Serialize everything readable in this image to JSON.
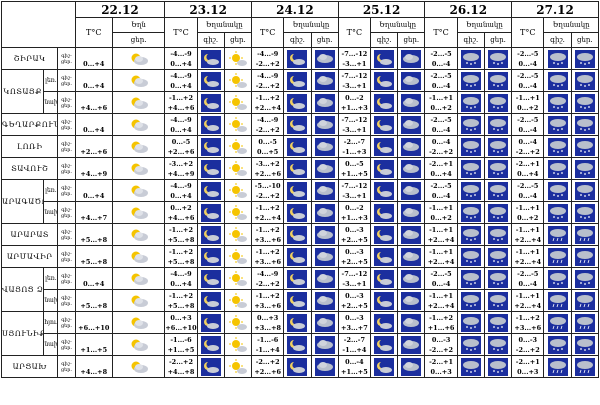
{
  "corner": "",
  "dates": [
    "22.12",
    "23.12",
    "24.12",
    "25.12",
    "26.12",
    "27.12"
  ],
  "temp_label": "T°C",
  "phen_label": "Եղանակը",
  "time_labels": [
    "գիշ.",
    "ցեր."
  ],
  "first_day_labels": [
    "Եղն",
    "ցեր."
  ],
  "row_labels": [
    "գիշ-",
    "ցեր."
  ],
  "regions": [
    {
      "name": "ՇԻՐԱԿ",
      "sub": "",
      "days": [
        {
          "t": [
            "",
            "0...+4"
          ],
          "ic": [
            "",
            "cloud-sun"
          ]
        },
        {
          "t": [
            "-4...-9",
            "0...+4"
          ],
          "ic": [
            "moon-cloud",
            "sun"
          ]
        },
        {
          "t": [
            "-4...-9",
            "-2...+2"
          ],
          "ic": [
            "moon-cloud",
            "cloud"
          ]
        },
        {
          "t": [
            "-7...-12",
            "-3...+1"
          ],
          "ic": [
            "moon-cloud",
            "cloud"
          ]
        },
        {
          "t": [
            "-2...-5",
            "0...-4"
          ],
          "ic": [
            "snow-cloud",
            "snow-cloud"
          ]
        },
        {
          "t": [
            "-2...-5",
            "0...-4"
          ],
          "ic": [
            "snow-cloud",
            "snow-cloud"
          ]
        }
      ]
    },
    {
      "name": "ԿՈՏԱՅՔ",
      "sub": "լեռ.",
      "days": [
        {
          "t": [
            "",
            "0...+4"
          ],
          "ic": [
            "",
            "cloud-sun"
          ]
        },
        {
          "t": [
            "-4...-9",
            "0...+4"
          ],
          "ic": [
            "moon-cloud",
            "sun"
          ]
        },
        {
          "t": [
            "-4...-9",
            "-2...+2"
          ],
          "ic": [
            "moon-cloud",
            "cloud"
          ]
        },
        {
          "t": [
            "-7...-12",
            "-3...+1"
          ],
          "ic": [
            "moon-cloud",
            "cloud"
          ]
        },
        {
          "t": [
            "-2...-5",
            "0...-4"
          ],
          "ic": [
            "snow-cloud",
            "snow-cloud"
          ]
        },
        {
          "t": [
            "-2...-5",
            "0...-4"
          ],
          "ic": [
            "snow-cloud",
            "snow-cloud"
          ]
        }
      ]
    },
    {
      "name": "",
      "sub": "նախ.",
      "days": [
        {
          "t": [
            "",
            "+4...+6"
          ],
          "ic": [
            "",
            "cloud-sun"
          ]
        },
        {
          "t": [
            "-1...+2",
            "+4...+6"
          ],
          "ic": [
            "moon-cloud",
            "sun"
          ]
        },
        {
          "t": [
            "-1...+2",
            "+2...+4"
          ],
          "ic": [
            "moon-cloud",
            "cloud"
          ]
        },
        {
          "t": [
            "0...-2",
            "+1...+3"
          ],
          "ic": [
            "moon-cloud",
            "cloud"
          ]
        },
        {
          "t": [
            "-1...+1",
            "0...+2"
          ],
          "ic": [
            "snow-cloud",
            "snow-cloud"
          ]
        },
        {
          "t": [
            "-1...+1",
            "0...+2"
          ],
          "ic": [
            "snow-cloud",
            "snow-cloud"
          ]
        }
      ]
    },
    {
      "name": "ԳԵՂԱՐՔՈՒՆԻՔ",
      "sub": "",
      "days": [
        {
          "t": [
            "",
            "0...+4"
          ],
          "ic": [
            "",
            "cloud-sun"
          ]
        },
        {
          "t": [
            "-4...-9",
            "0...+4"
          ],
          "ic": [
            "moon-cloud",
            "sun"
          ]
        },
        {
          "t": [
            "-4...-9",
            "-2...+2"
          ],
          "ic": [
            "moon-cloud",
            "cloud"
          ]
        },
        {
          "t": [
            "-7...-12",
            "-3...+1"
          ],
          "ic": [
            "moon-cloud",
            "cloud"
          ]
        },
        {
          "t": [
            "-2...-5",
            "0...-4"
          ],
          "ic": [
            "snow-cloud",
            "snow-cloud"
          ]
        },
        {
          "t": [
            "-2...-5",
            "0...-4"
          ],
          "ic": [
            "snow-cloud",
            "snow-cloud"
          ]
        }
      ]
    },
    {
      "name": "ԼՈՌԻ",
      "sub": "",
      "days": [
        {
          "t": [
            "",
            "+2...+6"
          ],
          "ic": [
            "",
            "cloud-sun"
          ]
        },
        {
          "t": [
            "0...-5",
            "+2...+6"
          ],
          "ic": [
            "moon-cloud",
            "sun"
          ]
        },
        {
          "t": [
            "0...-5",
            "0...+5"
          ],
          "ic": [
            "moon-cloud",
            "cloud"
          ]
        },
        {
          "t": [
            "-2...-7",
            "-1...+3"
          ],
          "ic": [
            "moon-cloud",
            "cloud"
          ]
        },
        {
          "t": [
            "0...-4",
            "-2...+2"
          ],
          "ic": [
            "snow-cloud",
            "snow-cloud"
          ]
        },
        {
          "t": [
            "0...-4",
            "-2...+2"
          ],
          "ic": [
            "snow-cloud",
            "snow-cloud"
          ]
        }
      ]
    },
    {
      "name": "ՏԱՎՈՒՇ",
      "sub": "",
      "days": [
        {
          "t": [
            "",
            "+4...+9"
          ],
          "ic": [
            "",
            "cloud-sun"
          ]
        },
        {
          "t": [
            "-3...+2",
            "+4...+9"
          ],
          "ic": [
            "moon-cloud",
            "sun"
          ]
        },
        {
          "t": [
            "-3...+2",
            "+2...+6"
          ],
          "ic": [
            "moon-cloud",
            "cloud"
          ]
        },
        {
          "t": [
            "0...-5",
            "+1...+5"
          ],
          "ic": [
            "moon-cloud",
            "cloud"
          ]
        },
        {
          "t": [
            "-2...+1",
            "0...+4"
          ],
          "ic": [
            "snow-cloud",
            "snow-cloud"
          ]
        },
        {
          "t": [
            "-2...+1",
            "0...+4"
          ],
          "ic": [
            "snow-cloud",
            "snow-cloud"
          ]
        }
      ]
    },
    {
      "name": "ԱՐԱԳԱԾՈՏՆ",
      "sub": "լեռ.",
      "days": [
        {
          "t": [
            "",
            "0...+4"
          ],
          "ic": [
            "",
            "cloud-sun"
          ]
        },
        {
          "t": [
            "-4...-9",
            "0...+4"
          ],
          "ic": [
            "moon-cloud",
            "sun"
          ]
        },
        {
          "t": [
            "-5...-10",
            "-2...+2"
          ],
          "ic": [
            "moon-cloud",
            "cloud"
          ]
        },
        {
          "t": [
            "-7...-12",
            "-3...+1"
          ],
          "ic": [
            "moon-cloud",
            "cloud"
          ]
        },
        {
          "t": [
            "-2...-5",
            "0...-4"
          ],
          "ic": [
            "snow-cloud",
            "snow-cloud"
          ]
        },
        {
          "t": [
            "-2...-5",
            "0...-4"
          ],
          "ic": [
            "snow-cloud",
            "snow-cloud"
          ]
        }
      ]
    },
    {
      "name": "",
      "sub": "նախ.",
      "days": [
        {
          "t": [
            "",
            "+4...+7"
          ],
          "ic": [
            "",
            "cloud-sun"
          ]
        },
        {
          "t": [
            "0...+2",
            "+4...+6"
          ],
          "ic": [
            "moon-cloud",
            "sun"
          ]
        },
        {
          "t": [
            "-1...+2",
            "+2...+4"
          ],
          "ic": [
            "moon-cloud",
            "cloud"
          ]
        },
        {
          "t": [
            "0...-2",
            "+1...+3"
          ],
          "ic": [
            "moon-cloud",
            "cloud"
          ]
        },
        {
          "t": [
            "-1...+1",
            "0...+2"
          ],
          "ic": [
            "snow-cloud",
            "snow-cloud"
          ]
        },
        {
          "t": [
            "-1...+1",
            "0...+2"
          ],
          "ic": [
            "snow-cloud",
            "snow-cloud"
          ]
        }
      ]
    },
    {
      "name": "ԱՐԱՐԱՏ",
      "sub": "",
      "days": [
        {
          "t": [
            "",
            "+5...+8"
          ],
          "ic": [
            "",
            "cloud-sun"
          ]
        },
        {
          "t": [
            "-1...+2",
            "+5...+8"
          ],
          "ic": [
            "moon-cloud",
            "sun"
          ]
        },
        {
          "t": [
            "-1...+2",
            "+3...+6"
          ],
          "ic": [
            "moon-cloud",
            "cloud"
          ]
        },
        {
          "t": [
            "0...-3",
            "+2...+5"
          ],
          "ic": [
            "moon-cloud",
            "cloud"
          ]
        },
        {
          "t": [
            "-1...+1",
            "+2...+4"
          ],
          "ic": [
            "snow-cloud",
            "snow-cloud"
          ]
        },
        {
          "t": [
            "-1...+1",
            "+2...+4"
          ],
          "ic": [
            "rain-cloud",
            "rain-cloud"
          ]
        }
      ]
    },
    {
      "name": "ԱՐՄԱՎԻՐ",
      "sub": "",
      "days": [
        {
          "t": [
            "",
            "+5...+8"
          ],
          "ic": [
            "",
            "cloud-sun"
          ]
        },
        {
          "t": [
            "-1...+2",
            "+5...+8"
          ],
          "ic": [
            "moon-cloud",
            "sun"
          ]
        },
        {
          "t": [
            "-1...+2",
            "+3...+6"
          ],
          "ic": [
            "moon-cloud",
            "cloud"
          ]
        },
        {
          "t": [
            "0...-3",
            "+2...+5"
          ],
          "ic": [
            "moon-cloud",
            "cloud"
          ]
        },
        {
          "t": [
            "-1...+1",
            "+2...+4"
          ],
          "ic": [
            "snow-cloud",
            "snow-cloud"
          ]
        },
        {
          "t": [
            "-1...+1",
            "+2...+4"
          ],
          "ic": [
            "rain-cloud",
            "rain-cloud"
          ]
        }
      ]
    },
    {
      "name": "ՎԱՅՈՑ ՁՈՐ",
      "sub": "լեռ.",
      "days": [
        {
          "t": [
            "",
            "0...+4"
          ],
          "ic": [
            "",
            "cloud-sun"
          ]
        },
        {
          "t": [
            "-4...-9",
            "0...+4"
          ],
          "ic": [
            "moon-cloud",
            "sun"
          ]
        },
        {
          "t": [
            "-4...-9",
            "-2...+2"
          ],
          "ic": [
            "moon-cloud",
            "cloud"
          ]
        },
        {
          "t": [
            "-7...-12",
            "-3...+1"
          ],
          "ic": [
            "moon-cloud",
            "cloud"
          ]
        },
        {
          "t": [
            "-2...-5",
            "0...-4"
          ],
          "ic": [
            "snow-cloud",
            "snow-cloud"
          ]
        },
        {
          "t": [
            "-2...-5",
            "0...-4"
          ],
          "ic": [
            "snow-cloud",
            "snow-cloud"
          ]
        }
      ]
    },
    {
      "name": "",
      "sub": "նախ.",
      "days": [
        {
          "t": [
            "",
            "+5...+8"
          ],
          "ic": [
            "",
            "cloud-sun"
          ]
        },
        {
          "t": [
            "-1...+2",
            "+5...+8"
          ],
          "ic": [
            "moon-cloud",
            "sun"
          ]
        },
        {
          "t": [
            "-1...+2",
            "+3...+6"
          ],
          "ic": [
            "moon-cloud",
            "cloud"
          ]
        },
        {
          "t": [
            "0...-3",
            "+2...+5"
          ],
          "ic": [
            "moon-cloud",
            "cloud"
          ]
        },
        {
          "t": [
            "-1...+1",
            "+2...+4"
          ],
          "ic": [
            "snow-cloud",
            "snow-cloud"
          ]
        },
        {
          "t": [
            "-1...+1",
            "+2...+4"
          ],
          "ic": [
            "rain-cloud",
            "rain-cloud"
          ]
        }
      ]
    },
    {
      "name": "ՍՅՈՒՆԻՔ",
      "sub": "հյու.",
      "days": [
        {
          "t": [
            "",
            "+6...+10"
          ],
          "ic": [
            "",
            "cloud-sun"
          ]
        },
        {
          "t": [
            "0...+3",
            "+6...+10"
          ],
          "ic": [
            "moon-cloud",
            "sun"
          ]
        },
        {
          "t": [
            "0...+3",
            "+3...+8"
          ],
          "ic": [
            "moon-cloud",
            "cloud"
          ]
        },
        {
          "t": [
            "0...-3",
            "+3...+7"
          ],
          "ic": [
            "moon-cloud",
            "cloud"
          ]
        },
        {
          "t": [
            "-1...+2",
            "+1...+6"
          ],
          "ic": [
            "snow-cloud",
            "snow-cloud"
          ]
        },
        {
          "t": [
            "-1...+2",
            "+3...+6"
          ],
          "ic": [
            "rain-cloud",
            "rain-cloud"
          ]
        }
      ]
    },
    {
      "name": "",
      "sub": "նախ.",
      "days": [
        {
          "t": [
            "",
            "+1...+5"
          ],
          "ic": [
            "",
            "cloud-sun"
          ]
        },
        {
          "t": [
            "-1...-6",
            "+1...+5"
          ],
          "ic": [
            "moon-cloud",
            "sun"
          ]
        },
        {
          "t": [
            "-1...-6",
            "-1...+4"
          ],
          "ic": [
            "moon-cloud",
            "cloud"
          ]
        },
        {
          "t": [
            "-2...-7",
            "-1...+4"
          ],
          "ic": [
            "moon-cloud",
            "cloud"
          ]
        },
        {
          "t": [
            "0...-3",
            "-2...+2"
          ],
          "ic": [
            "snow-cloud",
            "snow-cloud"
          ]
        },
        {
          "t": [
            "0...-3",
            "-2...+2"
          ],
          "ic": [
            "snow-cloud",
            "snow-cloud"
          ]
        }
      ]
    },
    {
      "name": "ԱՐՑԱԽ",
      "sub": "",
      "days": [
        {
          "t": [
            "",
            "+4...+8"
          ],
          "ic": [
            "",
            "cloud-sun"
          ]
        },
        {
          "t": [
            "-2...+2",
            "+4...+8"
          ],
          "ic": [
            "moon-cloud",
            "sun"
          ]
        },
        {
          "t": [
            "-2...+2",
            "+2...+6"
          ],
          "ic": [
            "moon-cloud",
            "cloud"
          ]
        },
        {
          "t": [
            "0...-4",
            "+1...+5"
          ],
          "ic": [
            "moon-cloud",
            "cloud"
          ]
        },
        {
          "t": [
            "-2...+1",
            "0...+3"
          ],
          "ic": [
            "snow-cloud",
            "snow-cloud"
          ]
        },
        {
          "t": [
            "-2...+1",
            "0...+3"
          ],
          "ic": [
            "rain-cloud",
            "rain-cloud"
          ]
        }
      ]
    }
  ],
  "colors": {
    "night_bg": "#1b2e9e",
    "cloud_grey": "#b8bfcc",
    "sun": "#f5c400",
    "moon": "#f0d060"
  }
}
